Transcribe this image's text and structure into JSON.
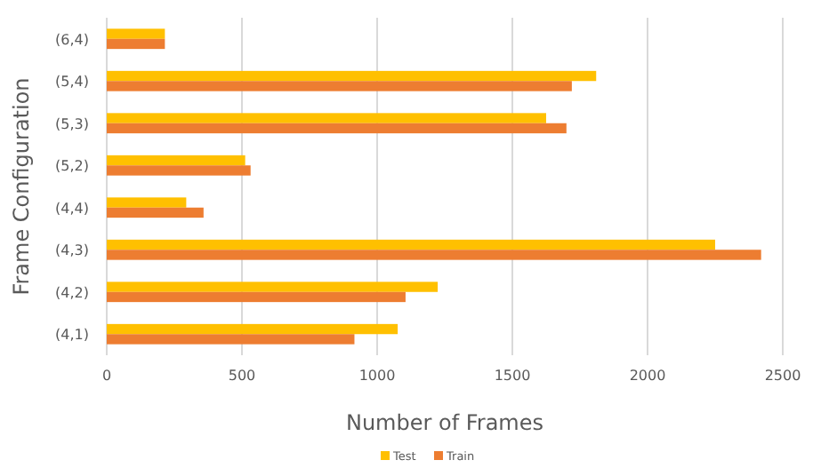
{
  "chart_data": {
    "type": "bar",
    "orientation": "horizontal",
    "categories": [
      "(6,4)",
      "(5,4)",
      "(5,3)",
      "(5,2)",
      "(4,4)",
      "(4,3)",
      "(4,2)",
      "(4,1)"
    ],
    "series": [
      {
        "name": "Test",
        "color": "#ffc000",
        "values": [
          215,
          1810,
          1625,
          512,
          294,
          2250,
          1224,
          1076
        ]
      },
      {
        "name": "Train",
        "color": "#ed7d31",
        "values": [
          215,
          1720,
          1700,
          532,
          358,
          2420,
          1105,
          916
        ]
      }
    ],
    "xlim": [
      0,
      2500
    ],
    "xticks": [
      0,
      500,
      1000,
      1500,
      2000,
      2500
    ],
    "xlabel": "Number of Frames",
    "ylabel": "Frame Configuration",
    "grid": "x",
    "legend": "bottom"
  }
}
